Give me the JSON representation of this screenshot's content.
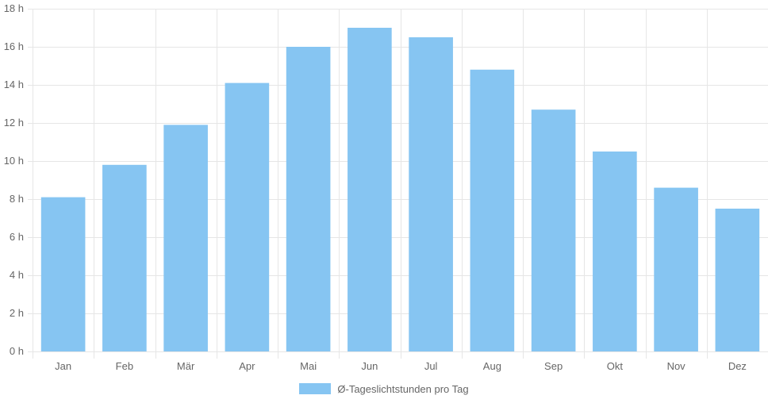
{
  "chart_data": {
    "type": "bar",
    "categories": [
      "Jan",
      "Feb",
      "Mär",
      "Apr",
      "Mai",
      "Jun",
      "Jul",
      "Aug",
      "Sep",
      "Okt",
      "Nov",
      "Dez"
    ],
    "series": [
      {
        "name": "Ø-Tageslichtstunden pro Tag",
        "values": [
          8.1,
          9.8,
          11.9,
          14.1,
          16.0,
          17.0,
          16.5,
          14.8,
          12.7,
          10.5,
          8.6,
          7.5
        ]
      }
    ],
    "ylim": [
      0,
      18
    ],
    "y_ticks": [
      0,
      2,
      4,
      6,
      8,
      10,
      12,
      14,
      16,
      18
    ],
    "y_unit": "h",
    "grid": true,
    "legend_position": "bottom",
    "colors": {
      "bar": "#86c5f2",
      "grid": "#e6e6e6",
      "text": "#666666"
    }
  }
}
